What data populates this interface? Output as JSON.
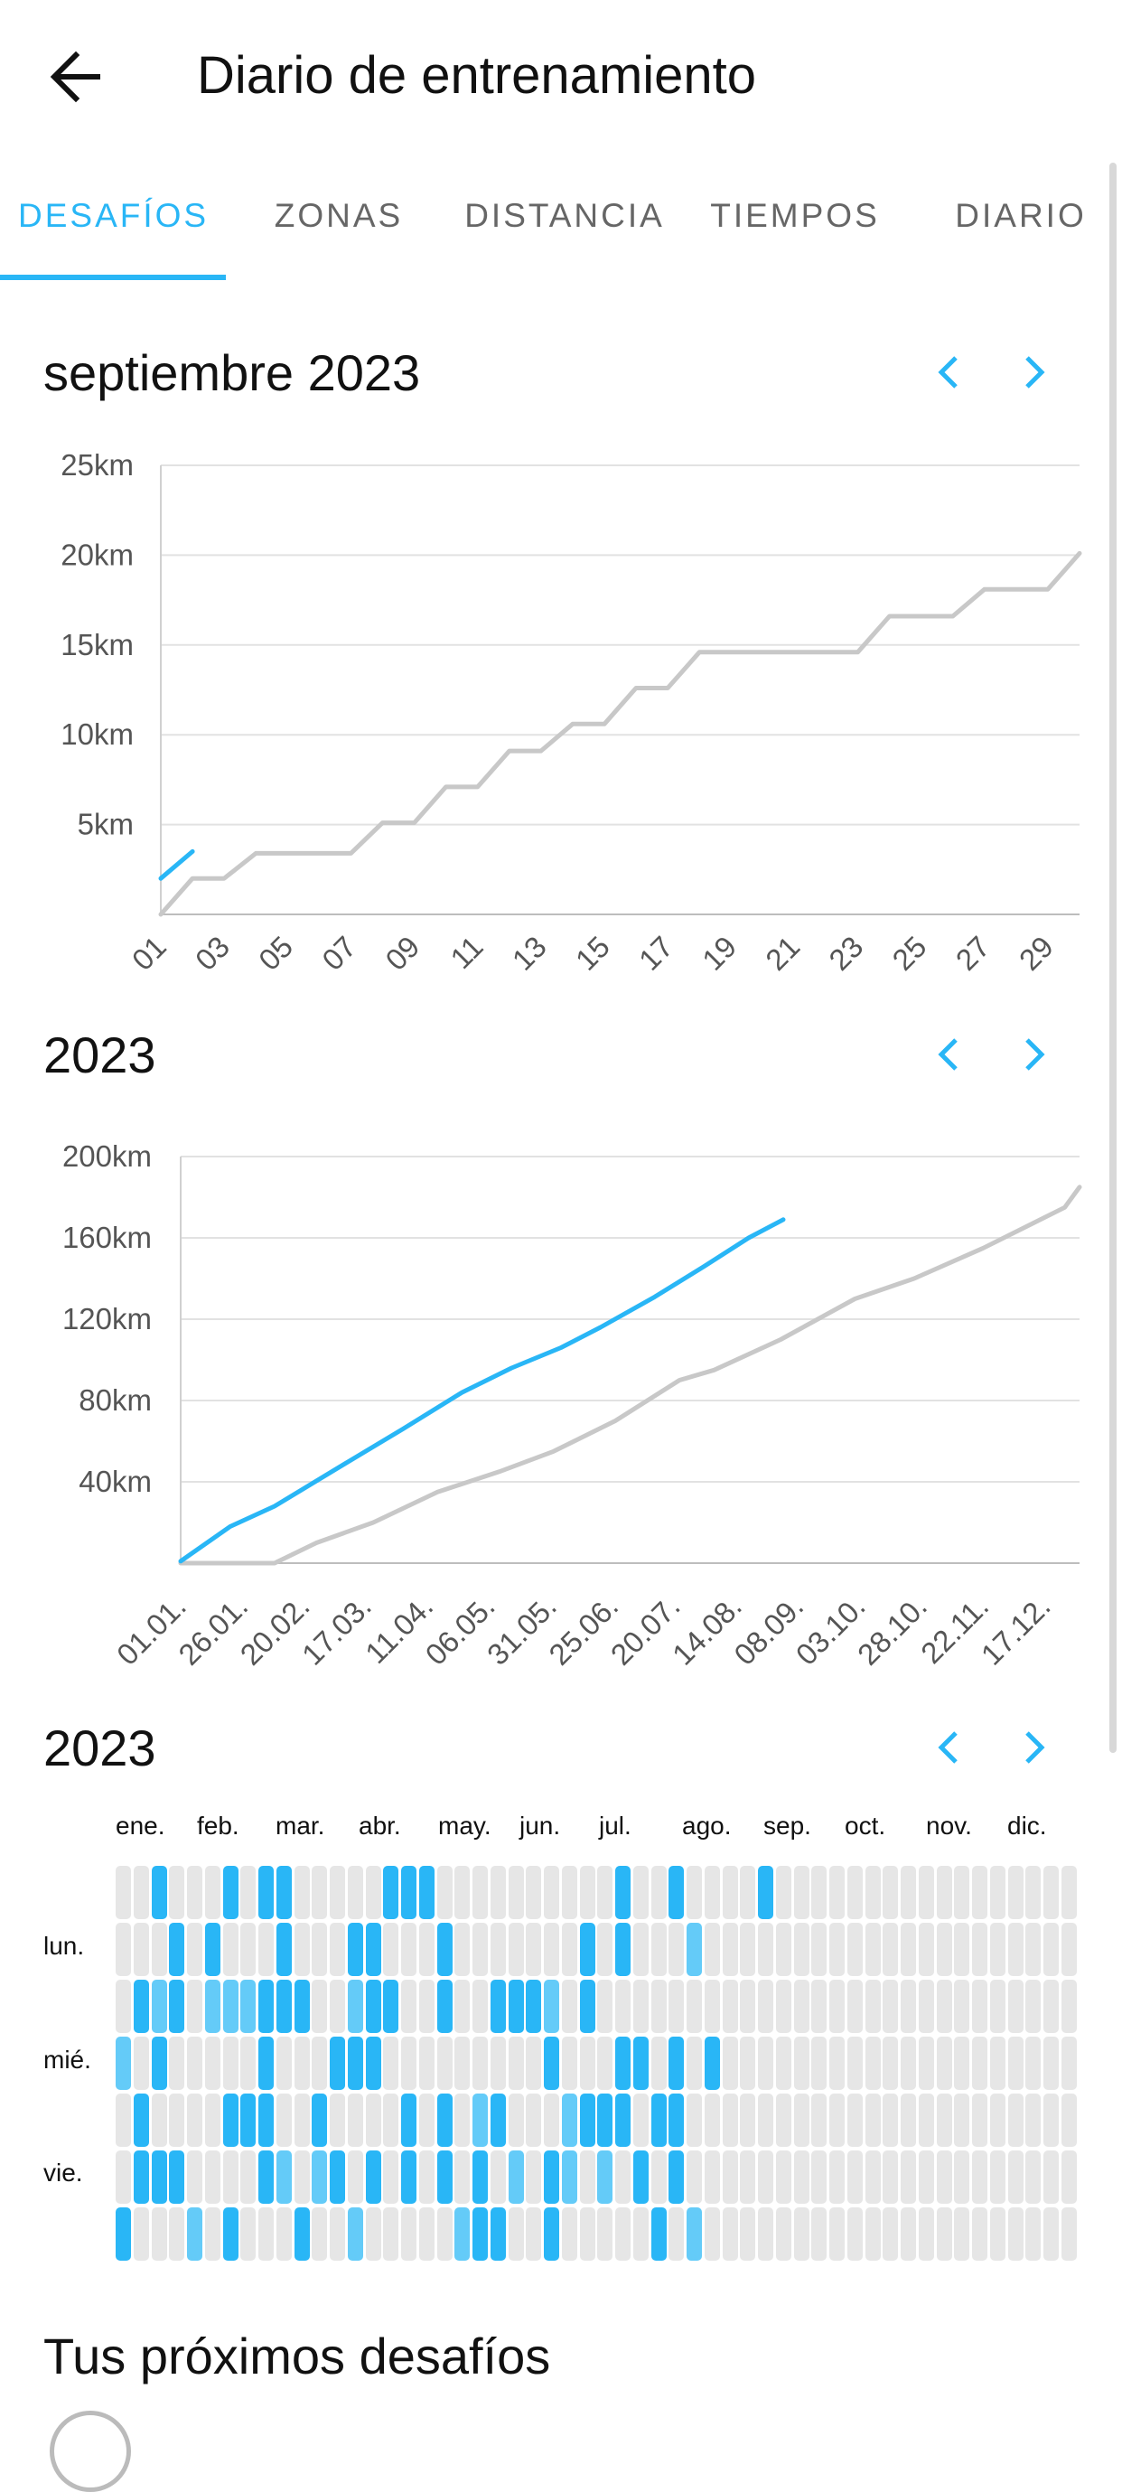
{
  "appbar": {
    "title": "Diario de entrenamiento",
    "back_icon": "arrow-left-icon"
  },
  "tabs": [
    {
      "label": "DESAFÍOS",
      "active": true
    },
    {
      "label": "ZONAS",
      "active": false
    },
    {
      "label": "DISTANCIA",
      "active": false
    },
    {
      "label": "TIEMPOS",
      "active": false
    },
    {
      "label": "DIARIO",
      "active": false
    }
  ],
  "colors": {
    "accent": "#29b6f6",
    "accent_light": "#64cbf8",
    "previous": "#c8c8c8",
    "empty_cell": "#e6e6e6"
  },
  "monthly": {
    "title": "septiembre 2023",
    "prev_icon": "chevron-left-icon",
    "next_icon": "chevron-right-icon"
  },
  "yearly": {
    "title": "2023",
    "prev_icon": "chevron-left-icon",
    "next_icon": "chevron-right-icon"
  },
  "calendar": {
    "title": "2023",
    "prev_icon": "chevron-left-icon",
    "next_icon": "chevron-right-icon",
    "months": [
      "ene.",
      "feb.",
      "mar.",
      "abr.",
      "may.",
      "jun.",
      "jul.",
      "ago.",
      "sep.",
      "oct.",
      "nov.",
      "dic."
    ],
    "day_labels": [
      "lun.",
      "mié.",
      "vie."
    ],
    "weeks": 54,
    "rows": [
      "0010001011000001110000000000100100001000000000000000000",
      "0001010001000110001000000010100020000000000000000000000",
      "0121022211100211001001112010000000000000000000000000000",
      "2010000010001110000000001000110101000000000000000000000",
      "0100001110010000101021000211101100000000000000000000000",
      "0111000012021010101010201202010100000000000000000000000",
      "1000201000100200000211001000001020000000000000000000000"
    ]
  },
  "chart_data": [
    {
      "type": "line",
      "title": "septiembre 2023",
      "y_ticks": [
        "25km",
        "20km",
        "15km",
        "10km",
        "5km"
      ],
      "ylim": [
        0,
        25
      ],
      "x_ticks": [
        "01",
        "03",
        "05",
        "07",
        "09",
        "11",
        "13",
        "15",
        "17",
        "19",
        "21",
        "23",
        "25",
        "27",
        "29"
      ],
      "xlim": [
        1,
        30
      ],
      "series": [
        {
          "color": "#29b6f6",
          "x": [
            1,
            2
          ],
          "y": [
            2.0,
            3.5
          ]
        },
        {
          "color": "#c8c8c8",
          "x": [
            1,
            2,
            3,
            4,
            5,
            6,
            7,
            8,
            9,
            10,
            11,
            12,
            13,
            14,
            15,
            16,
            17,
            18,
            19,
            20,
            21,
            22,
            23,
            24,
            25,
            26,
            27,
            28,
            29,
            30
          ],
          "y": [
            0,
            2.0,
            2.0,
            3.4,
            3.4,
            3.4,
            3.4,
            5.1,
            5.1,
            7.1,
            7.1,
            9.1,
            9.1,
            10.6,
            10.6,
            12.6,
            12.6,
            14.6,
            14.6,
            14.6,
            14.6,
            14.6,
            14.6,
            16.6,
            16.6,
            16.6,
            18.1,
            18.1,
            18.1,
            20.1
          ]
        }
      ]
    },
    {
      "type": "line",
      "title": "2023",
      "y_ticks": [
        "200km",
        "160km",
        "120km",
        "80km",
        "40km"
      ],
      "ylim": [
        0,
        200
      ],
      "x_ticks": [
        "01.01.",
        "26.01.",
        "20.02.",
        "17.03.",
        "11.04.",
        "06.05.",
        "31.05.",
        "25.06.",
        "20.07.",
        "14.08.",
        "08.09.",
        "03.10.",
        "28.10.",
        "22.11.",
        "17.12."
      ],
      "xlim": [
        "2023-01-01",
        "2023-12-31"
      ],
      "series": [
        {
          "color": "#29b6f6",
          "x": [
            "2023-01-01",
            "2023-01-21",
            "2023-02-08",
            "2023-03-10",
            "2023-04-01",
            "2023-04-25",
            "2023-05-15",
            "2023-06-04",
            "2023-06-20",
            "2023-07-12",
            "2023-08-01",
            "2023-08-19",
            "2023-09-02"
          ],
          "y": [
            1,
            18,
            28,
            50,
            66,
            84,
            96,
            106,
            116,
            131,
            146,
            160,
            169
          ]
        },
        {
          "color": "#c8c8c8",
          "x": [
            "2023-01-01",
            "2023-02-08",
            "2023-02-25",
            "2023-03-20",
            "2023-04-15",
            "2023-05-10",
            "2023-06-01",
            "2023-06-26",
            "2023-07-22",
            "2023-08-05",
            "2023-09-01",
            "2023-10-01",
            "2023-10-25",
            "2023-11-22",
            "2023-12-25",
            "2023-12-31"
          ],
          "y": [
            0,
            0,
            10,
            20,
            35,
            45,
            55,
            70,
            90,
            95,
            110,
            130,
            140,
            155,
            175,
            185
          ]
        }
      ]
    }
  ],
  "upcoming": {
    "title": "Tus próximos desafíos"
  }
}
